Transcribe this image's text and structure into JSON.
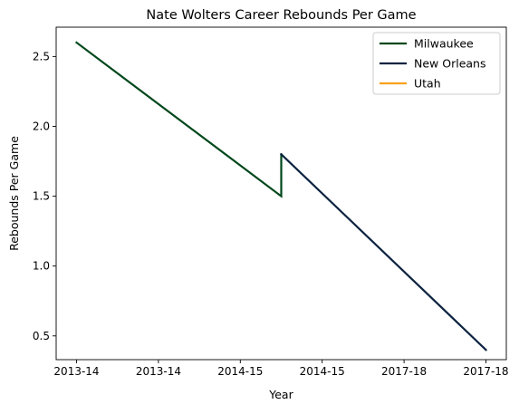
{
  "chart_data": {
    "type": "line",
    "title": "Nate Wolters Career Rebounds Per Game",
    "xlabel": "Year",
    "ylabel": "Rebounds Per Game",
    "xlim": [
      0,
      5
    ],
    "ylim": [
      0.33,
      2.71
    ],
    "x_tick_values": [
      0,
      1,
      2,
      3,
      4,
      5
    ],
    "x_tick_labels": [
      "2013-14",
      "2013-14",
      "2014-15",
      "2014-15",
      "2017-18",
      "2017-18"
    ],
    "y_ticks": [
      0.5,
      1.0,
      1.5,
      2.0,
      2.5
    ],
    "y_tick_labels": [
      "0.5",
      "1.0",
      "1.5",
      "2.0",
      "2.5"
    ],
    "grid": false,
    "legend_position": "top-right",
    "series": [
      {
        "name": "Milwaukee",
        "color": "#00471B",
        "points": [
          {
            "x": 0,
            "y": 2.6
          },
          {
            "x": 2.5,
            "y": 1.5
          },
          {
            "x": 2.5,
            "y": 1.8
          }
        ]
      },
      {
        "name": "New Orleans",
        "color": "#0C2340",
        "points": [
          {
            "x": 2.5,
            "y": 1.8
          },
          {
            "x": 5,
            "y": 0.4
          }
        ]
      },
      {
        "name": "Utah",
        "color": "#F9A01B",
        "points": []
      }
    ]
  }
}
